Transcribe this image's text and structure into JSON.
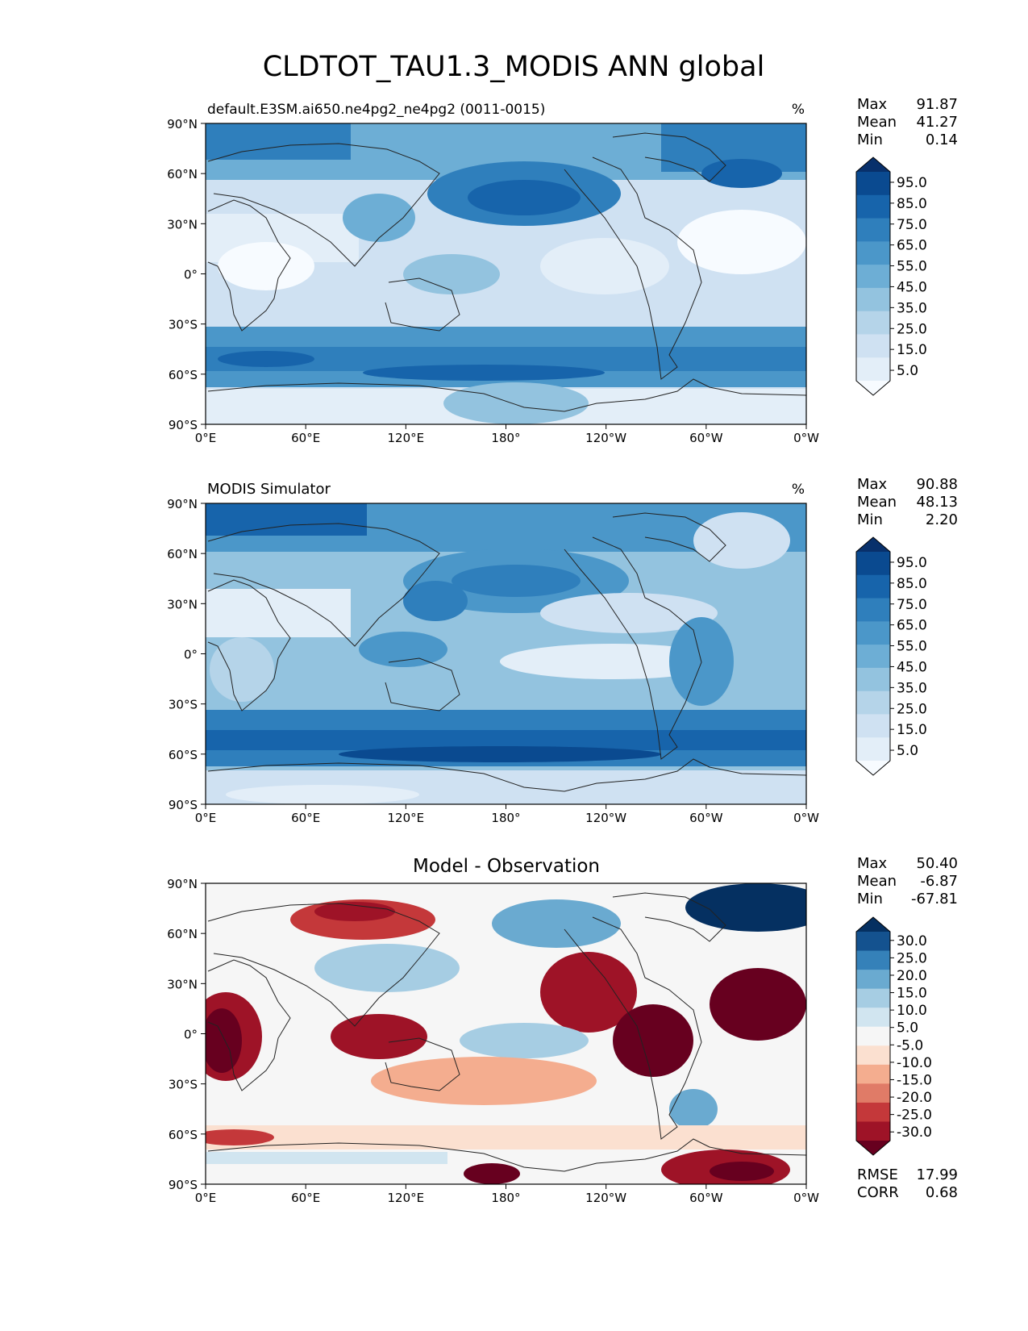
{
  "figure_title": "CLDTOT_TAU1.3_MODIS ANN global",
  "lat_ticks": [
    "90°N",
    "60°N",
    "30°N",
    "0°",
    "30°S",
    "60°S",
    "90°S"
  ],
  "lon_ticks": [
    "0°E",
    "60°E",
    "120°E",
    "180°",
    "120°W",
    "60°W",
    "0°W"
  ],
  "colormaps": {
    "blues": [
      "#f7fbff",
      "#e3eef8",
      "#cfe1f2",
      "#b5d4e9",
      "#93c3df",
      "#6daed5",
      "#4b97c9",
      "#2f7fbc",
      "#1764ab",
      "#0a4a90",
      "#08306b"
    ],
    "rdbu": [
      "#67001f",
      "#9e1327",
      "#c4383a",
      "#e07b67",
      "#f4ad8f",
      "#fbe0d0",
      "#f6f6f6",
      "#d1e5f0",
      "#a6cde3",
      "#6aaad0",
      "#3581b9",
      "#14528f",
      "#053061"
    ]
  },
  "panels": [
    {
      "title": "default.E3SM.ai650.ne4pg2_ne4pg2 (0011-0015)",
      "units": "%",
      "stats": [
        {
          "label": "Max",
          "value": "91.87"
        },
        {
          "label": "Mean",
          "value": "41.27"
        },
        {
          "label": "Min",
          "value": "0.14"
        }
      ],
      "colorbar_labels": [
        "95.0",
        "85.0",
        "75.0",
        "65.0",
        "55.0",
        "45.0",
        "35.0",
        "25.0",
        "15.0",
        "5.0"
      ],
      "colormap": "blues"
    },
    {
      "title": "MODIS Simulator",
      "units": "%",
      "stats": [
        {
          "label": "Max",
          "value": "90.88"
        },
        {
          "label": "Mean",
          "value": "48.13"
        },
        {
          "label": "Min",
          "value": "2.20"
        }
      ],
      "colorbar_labels": [
        "95.0",
        "85.0",
        "75.0",
        "65.0",
        "55.0",
        "45.0",
        "35.0",
        "25.0",
        "15.0",
        "5.0"
      ],
      "colormap": "blues"
    },
    {
      "title": "Model - Observation",
      "units": "",
      "stats": [
        {
          "label": "Max",
          "value": "50.40"
        },
        {
          "label": "Mean",
          "value": "-6.87"
        },
        {
          "label": "Min",
          "value": "-67.81"
        }
      ],
      "colorbar_labels": [
        "30.0",
        "25.0",
        "20.0",
        "15.0",
        "10.0",
        "5.0",
        "-5.0",
        "-10.0",
        "-15.0",
        "-20.0",
        "-25.0",
        "-30.0"
      ],
      "colormap": "rdbu",
      "metrics": [
        {
          "label": "RMSE",
          "value": "17.99"
        },
        {
          "label": "CORR",
          "value": "0.68"
        }
      ]
    }
  ]
}
